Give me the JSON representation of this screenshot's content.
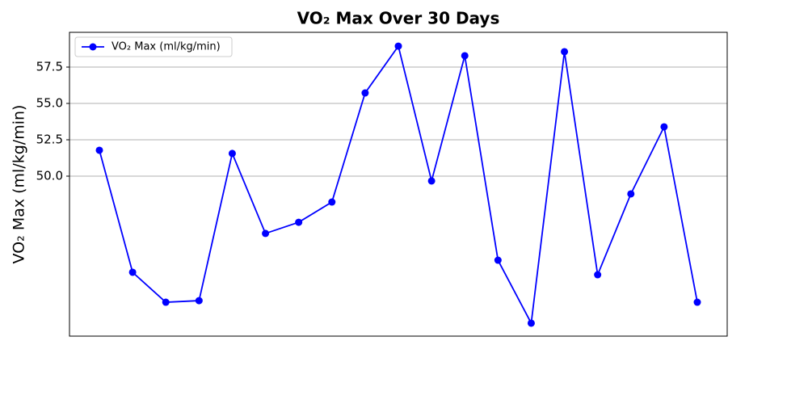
{
  "chart_data": {
    "type": "line",
    "title": "VO₂ Max Over 30 Days",
    "ylabel": "VO₂ Max (ml/kg/min)",
    "categories": [
      null,
      null,
      null,
      null,
      null,
      null,
      null,
      null,
      null,
      null,
      null,
      null,
      null,
      null,
      null,
      null,
      null,
      null,
      null
    ],
    "series": [
      {
        "name": "VO₂ Max (ml/kg/min)",
        "color": "#0000ff",
        "values": [
          51.78,
          43.39,
          41.33,
          41.44,
          51.56,
          46.06,
          46.83,
          48.22,
          55.72,
          58.94,
          49.67,
          58.28,
          44.22,
          39.89,
          58.56,
          43.22,
          48.78,
          53.39,
          41.33
        ]
      }
    ],
    "ylim": [
      39.0,
      59.89
    ],
    "yticks": [
      {
        "value": 50,
        "label": "50.0"
      },
      {
        "value": 52.5,
        "label": "52.5"
      },
      {
        "value": 55,
        "label": "55.0"
      },
      {
        "value": 57.5,
        "label": "57.5"
      }
    ],
    "grid": true,
    "legend": "upper-left"
  }
}
